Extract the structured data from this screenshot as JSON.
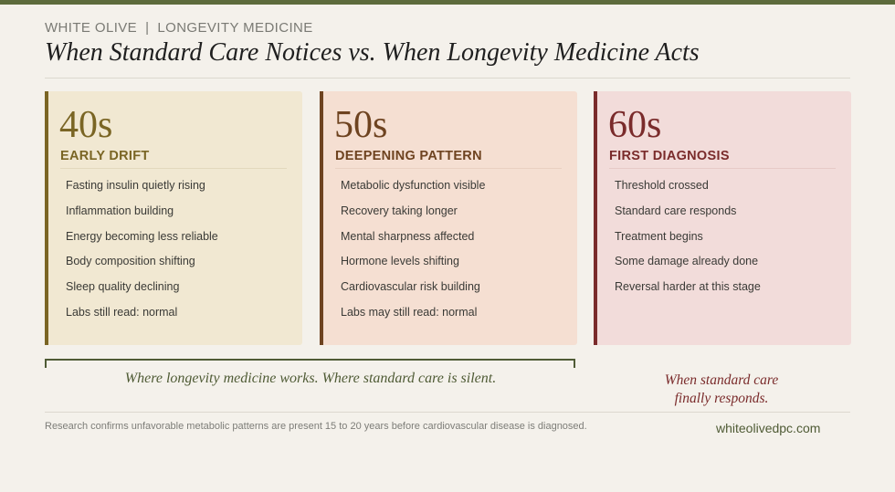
{
  "brand": {
    "name": "WHITE OLIVE",
    "separator": "|",
    "tagline": "LONGEVITY MEDICINE"
  },
  "title": "When Standard Care Notices vs. When Longevity Medicine Acts",
  "cards": [
    {
      "decade": "40s",
      "stage": "EARLY DRIFT",
      "items": [
        "Fasting insulin quietly rising",
        "Inflammation building",
        "Energy becoming less reliable",
        "Body composition shifting",
        "Sleep quality declining",
        "Labs still read: normal"
      ]
    },
    {
      "decade": "50s",
      "stage": "DEEPENING PATTERN",
      "items": [
        "Metabolic dysfunction visible",
        "Recovery taking longer",
        "Mental sharpness affected",
        "Hormone levels shifting",
        "Cardiovascular risk building",
        "Labs may still read: normal"
      ]
    },
    {
      "decade": "60s",
      "stage": "FIRST DIAGNOSIS",
      "items": [
        "Threshold crossed",
        "Standard care responds",
        "Treatment begins",
        "Some damage already done",
        "Reversal harder at this stage"
      ]
    }
  ],
  "captions": {
    "longevity": "Where longevity medicine works. Where standard care is silent.",
    "standard_line1": "When standard care",
    "standard_line2": "finally responds."
  },
  "footer": {
    "note": "Research confirms unfavorable metabolic patterns are present 15 to 20 years before cardiovascular disease is diagnosed.",
    "website": "whiteolivedpc.com"
  },
  "colors": {
    "accent_green": "#5d6b3c",
    "stage_40": "#7a6524",
    "stage_50": "#6e4320",
    "stage_60": "#7a2b2b",
    "card_40_bg": "#f1e8d2",
    "card_50_bg": "#f5dfd2",
    "card_60_bg": "#f2dcda"
  }
}
